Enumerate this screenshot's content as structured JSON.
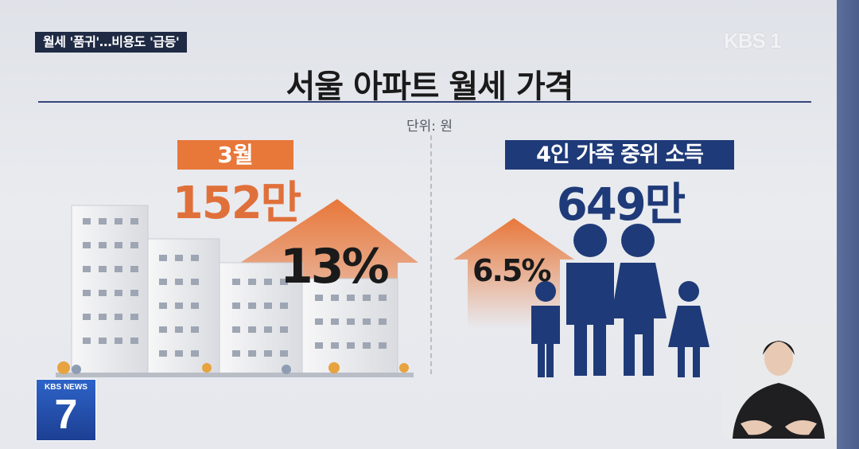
{
  "headline_tag": "월세 '품귀'…비용도 '급등'",
  "broadcaster_logo": "KBS 1",
  "title": "서울 아파트 월세 가격",
  "unit_label": "단위: 원",
  "left_panel": {
    "badge": "3월",
    "value": "152만",
    "increase": "13%"
  },
  "right_panel": {
    "badge": "4인 가족 중위 소득",
    "value": "649만",
    "increase": "6.5%"
  },
  "news_logo": {
    "name": "KBS NEWS",
    "number": "7"
  },
  "icons": [
    "apartment-building-icon",
    "up-arrow-icon",
    "family-icon",
    "sign-language-interpreter"
  ],
  "colors": {
    "accent_orange": "#e8773a",
    "accent_navy": "#1f3a78",
    "title_rule": "#34457a"
  }
}
